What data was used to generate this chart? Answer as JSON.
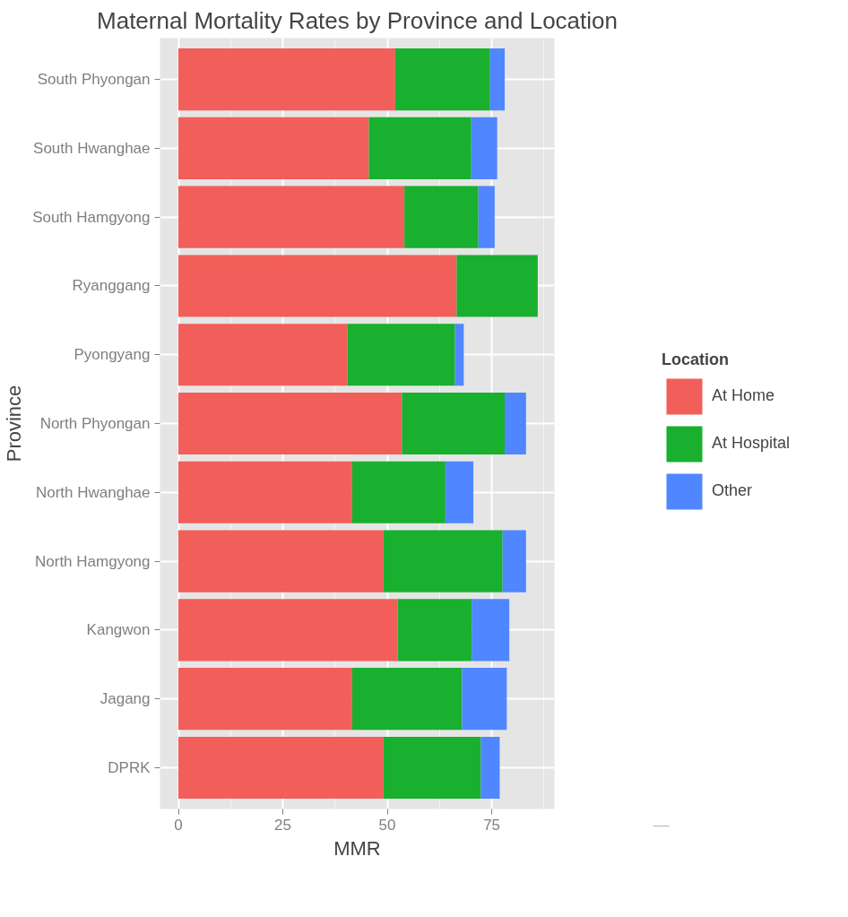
{
  "chart_data": {
    "type": "bar",
    "title": "Maternal Mortality Rates by Province and Location",
    "xlabel": "MMR",
    "ylabel": "Province",
    "legend_title": "Location",
    "orientation": "horizontal",
    "stacked": true,
    "categories": [
      "South Phyongan",
      "South Hwanghae",
      "South Hamgyong",
      "Ryanggang",
      "Pyongyang",
      "North Phyongan",
      "North Hwanghae",
      "North Hamgyong",
      "Kangwon",
      "Jagang",
      "DPRK"
    ],
    "series": [
      {
        "name": "At Home",
        "color": "#f25e5a",
        "values": [
          51.9,
          45.6,
          54.1,
          66.6,
          40.5,
          53.5,
          41.6,
          49.1,
          52.5,
          41.6,
          49.1
        ]
      },
      {
        "name": "At Hospital",
        "color": "#18b02e",
        "values": [
          22.7,
          24.5,
          17.7,
          19.4,
          25.7,
          24.6,
          22.3,
          28.5,
          17.7,
          26.3,
          23.3
        ]
      },
      {
        "name": "Other",
        "color": "#5086ff",
        "values": [
          3.5,
          6.2,
          3.9,
          0,
          2.1,
          5.1,
          6.7,
          5.6,
          9.0,
          10.7,
          4.5
        ]
      }
    ],
    "xlim": [
      -4.4,
      90
    ],
    "xticks": [
      0,
      25,
      50,
      75
    ],
    "grid": true,
    "legend": "right"
  }
}
